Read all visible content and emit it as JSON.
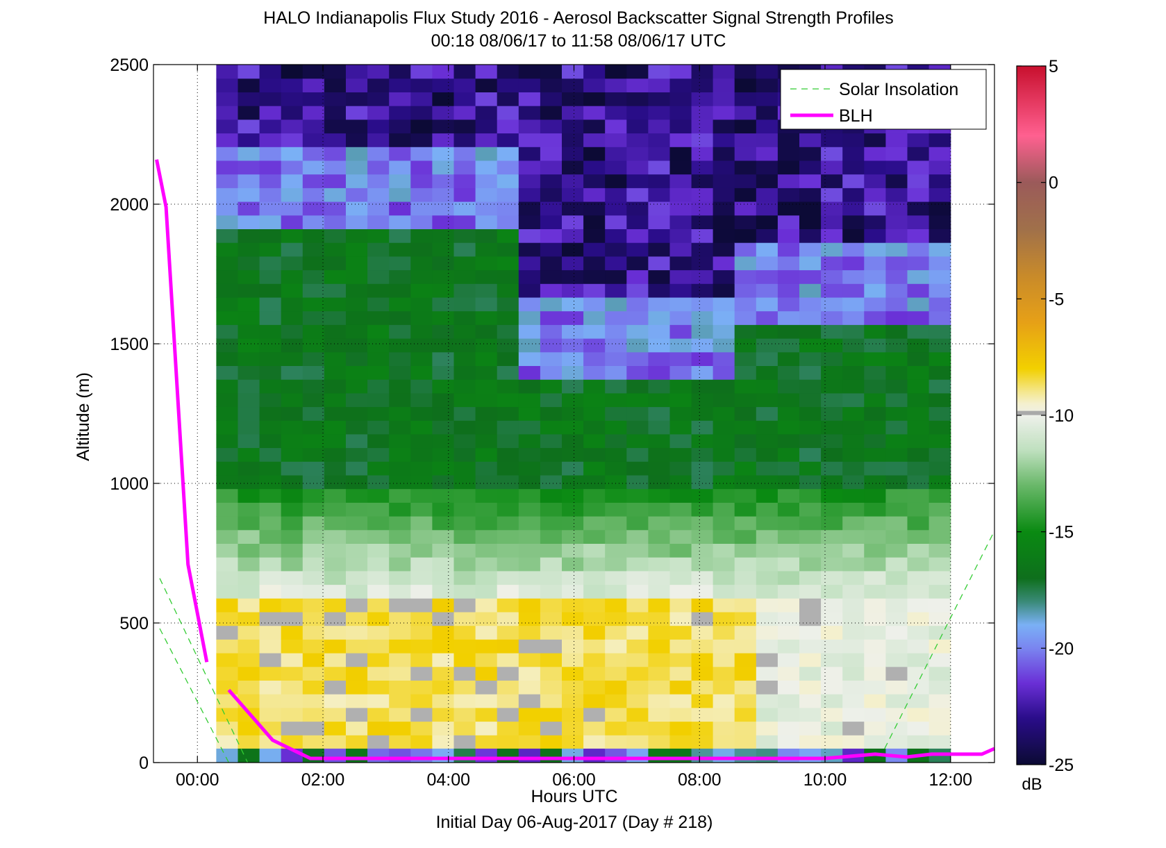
{
  "chart_data": {
    "type": "heatmap",
    "title": "HALO Indianapolis Flux Study 2016 - Aerosol Backscatter Signal Strength Profiles",
    "subtitle": "00:18 08/06/17 to 11:58 08/06/17  UTC",
    "xlabel": "Hours UTC",
    "xlabel2": "Initial Day 06-Aug-2017 (Day # 218)",
    "ylabel": "Altitude (m)",
    "xlim": [
      -0.7,
      12.7
    ],
    "ylim": [
      0,
      2500
    ],
    "x_ticks": [
      0,
      2,
      4,
      6,
      8,
      10,
      12
    ],
    "x_tick_labels": [
      "00:00",
      "02:00",
      "04:00",
      "06:00",
      "08:00",
      "10:00",
      "12:00"
    ],
    "y_ticks": [
      0,
      500,
      1000,
      1500,
      2000,
      2500
    ],
    "y_tick_labels": [
      "0",
      "500",
      "1000",
      "1500",
      "2000",
      "2500"
    ],
    "grid": true,
    "heatmap": {
      "time_range_hours": [
        0.3,
        12.0
      ],
      "n_time_bins": 34,
      "altitude_range_m": [
        50,
        2500
      ],
      "n_altitude_bins": 50,
      "value_range_db": [
        -25,
        5
      ]
    },
    "colorbar": {
      "ticks": [
        5,
        0,
        -5,
        -10,
        -15,
        -20,
        -25
      ],
      "tick_labels": [
        "5",
        "0",
        "-5",
        "-10",
        "-15",
        "-20",
        "-25"
      ],
      "unit": "dB"
    },
    "legend": {
      "position": "top-right",
      "entries": [
        {
          "label": "Solar Insolation",
          "color": "#33cc33",
          "style": "dashed"
        },
        {
          "label": "BLH",
          "color": "#ff00ff",
          "style": "solid"
        }
      ]
    },
    "series": [
      {
        "name": "BLH",
        "color": "#ff00ff",
        "segments": [
          {
            "x": [
              -0.65,
              -0.5,
              -0.15,
              0.15
            ],
            "y": [
              2160,
              1990,
              710,
              360
            ]
          },
          {
            "x": [
              0.5,
              1.2,
              1.8,
              3.0,
              6.0,
              10.0,
              10.8,
              11.3,
              11.7,
              12.0,
              12.5,
              12.7
            ],
            "y": [
              260,
              80,
              15,
              15,
              15,
              15,
              30,
              20,
              30,
              30,
              30,
              50
            ]
          }
        ]
      },
      {
        "name": "Solar Insolation",
        "color": "#33cc33",
        "segments": [
          {
            "x": [
              -0.6,
              0.8
            ],
            "y": [
              660,
              0
            ]
          },
          {
            "x": [
              -0.6,
              0.5
            ],
            "y": [
              480,
              0
            ]
          },
          {
            "x": [
              10.95,
              12.7
            ],
            "y": [
              50,
              830
            ]
          }
        ]
      }
    ]
  }
}
